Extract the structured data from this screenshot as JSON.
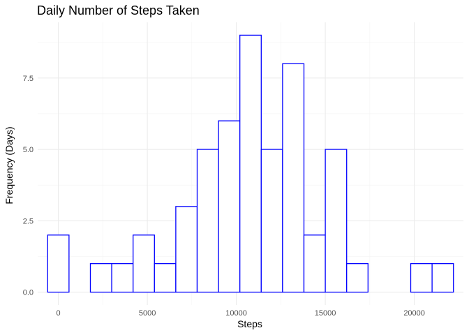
{
  "chart_data": {
    "type": "bar",
    "title": "Daily Number of Steps Taken",
    "xlabel": "Steps",
    "ylabel": "Frequency (Days)",
    "bin_width": 1200,
    "bin_starts": [
      -600,
      600,
      1800,
      3000,
      4200,
      5400,
      6600,
      7800,
      9000,
      10200,
      11400,
      12600,
      13800,
      15000,
      16200,
      17400,
      18600,
      19800,
      21000
    ],
    "values": [
      2,
      0,
      1,
      1,
      2,
      1,
      3,
      5,
      6,
      9,
      5,
      8,
      2,
      5,
      1,
      0,
      0,
      1,
      1
    ],
    "xlim": [
      -1160,
      22760
    ],
    "ylim": [
      -0.45,
      9.45
    ],
    "x_ticks": [
      0,
      5000,
      10000,
      15000,
      20000
    ],
    "x_tick_labels": [
      "0",
      "5000",
      "10000",
      "15000",
      "20000"
    ],
    "y_ticks": [
      0,
      2.5,
      5,
      7.5
    ],
    "y_tick_labels": [
      "0.0",
      "2.5",
      "5.0",
      "7.5"
    ],
    "grid": true,
    "colors": {
      "bar_outline": "#0000ff",
      "bar_fill": "#ffffff"
    }
  }
}
